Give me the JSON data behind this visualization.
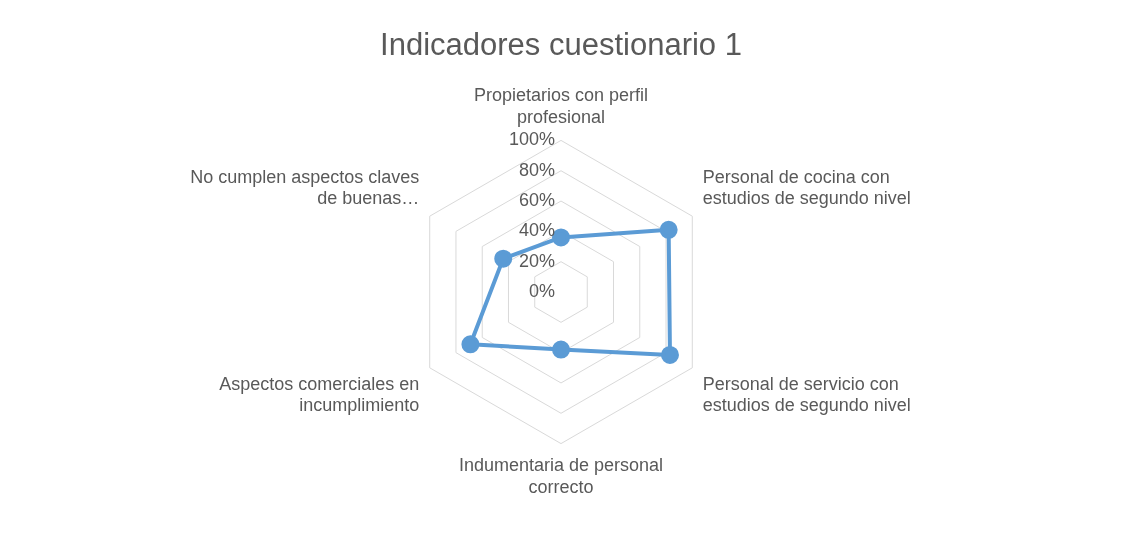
{
  "chart_data": {
    "type": "radar",
    "title": "Indicadores cuestionario 1",
    "categories": [
      "Propietarios con perfil profesional",
      "Personal de cocina con estudios de segundo nivel",
      "Personal de servicio con estudios de segundo nivel",
      "Indumentaria de personal correcto",
      "Aspectos comerciales en incumplimiento",
      "No cumplen aspectos claves de buenas…"
    ],
    "series": [
      {
        "color": "#5b9bd5",
        "values": [
          0.36,
          0.82,
          0.83,
          0.38,
          0.69,
          0.44
        ]
      }
    ],
    "ylim": [
      0,
      1
    ],
    "yticks": [
      {
        "value": 0,
        "label": "0%"
      },
      {
        "value": 0.2,
        "label": "20%"
      },
      {
        "value": 0.4,
        "label": "40%"
      },
      {
        "value": 0.6,
        "label": "60%"
      },
      {
        "value": 0.8,
        "label": "80%"
      },
      {
        "value": 1,
        "label": "100%"
      }
    ],
    "grid": true,
    "marker": "circle",
    "legend": false
  }
}
